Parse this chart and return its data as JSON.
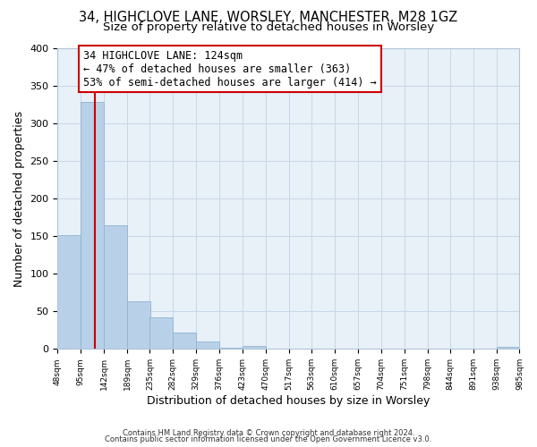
{
  "title": "34, HIGHCLOVE LANE, WORSLEY, MANCHESTER, M28 1GZ",
  "subtitle": "Size of property relative to detached houses in Worsley",
  "xlabel": "Distribution of detached houses by size in Worsley",
  "ylabel": "Number of detached properties",
  "bar_edges": [
    48,
    95,
    142,
    189,
    235,
    282,
    329,
    376,
    423,
    470,
    517,
    563,
    610,
    657,
    704,
    751,
    798,
    844,
    891,
    938,
    985
  ],
  "bar_heights": [
    152,
    329,
    164,
    64,
    42,
    22,
    10,
    2,
    4,
    0,
    0,
    0,
    0,
    0,
    0,
    0,
    0,
    0,
    0,
    3
  ],
  "bar_color": "#b8d0e8",
  "bar_edge_color": "#90b4d0",
  "property_line_x": 124,
  "property_line_color": "#cc0000",
  "annotation_line1": "34 HIGHCLOVE LANE: 124sqm",
  "annotation_line2": "← 47% of detached houses are smaller (363)",
  "annotation_line3": "53% of semi-detached houses are larger (414) →",
  "annotation_box_color": "#ffffff",
  "annotation_box_edge": "#cc0000",
  "ylim": [
    0,
    400
  ],
  "yticks": [
    0,
    50,
    100,
    150,
    200,
    250,
    300,
    350,
    400
  ],
  "tick_labels": [
    "48sqm",
    "95sqm",
    "142sqm",
    "189sqm",
    "235sqm",
    "282sqm",
    "329sqm",
    "376sqm",
    "423sqm",
    "470sqm",
    "517sqm",
    "563sqm",
    "610sqm",
    "657sqm",
    "704sqm",
    "751sqm",
    "798sqm",
    "844sqm",
    "891sqm",
    "938sqm",
    "985sqm"
  ],
  "footer_line1": "Contains HM Land Registry data © Crown copyright and database right 2024.",
  "footer_line2": "Contains public sector information licensed under the Open Government Licence v3.0.",
  "bg_color": "#ffffff",
  "plot_bg_color": "#e8f0f8",
  "grid_color": "#c8d8e8",
  "title_fontsize": 10.5,
  "subtitle_fontsize": 9.5,
  "annotation_fontsize": 8.5
}
